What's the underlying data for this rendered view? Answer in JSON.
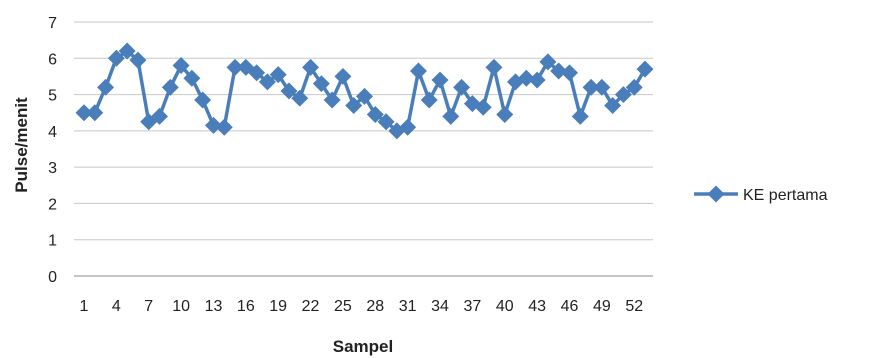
{
  "chart_data": {
    "type": "line",
    "xlabel": "Sampel",
    "ylabel": "Pulse/menit",
    "ylim": [
      0,
      7
    ],
    "yticks": [
      0,
      1,
      2,
      3,
      4,
      5,
      6,
      7
    ],
    "x_tick_labels": [
      "1",
      "4",
      "7",
      "10",
      "13",
      "16",
      "19",
      "22",
      "25",
      "28",
      "31",
      "34",
      "37",
      "40",
      "43",
      "46",
      "49",
      "52"
    ],
    "grid": "horizontal",
    "legend": "right",
    "color": "#4a7ebb",
    "x": [
      1,
      2,
      3,
      4,
      5,
      6,
      7,
      8,
      9,
      10,
      11,
      12,
      13,
      14,
      15,
      16,
      17,
      18,
      19,
      20,
      21,
      22,
      23,
      24,
      25,
      26,
      27,
      28,
      29,
      30,
      31,
      32,
      33,
      34,
      35,
      36,
      37,
      38,
      39,
      40,
      41,
      42,
      43,
      44,
      45,
      46,
      47,
      48,
      49,
      50,
      51,
      52,
      53
    ],
    "series": [
      {
        "name": "KE pertama",
        "values": [
          4.5,
          4.5,
          5.2,
          6.0,
          6.2,
          5.95,
          4.25,
          4.4,
          5.2,
          5.8,
          5.45,
          4.85,
          4.15,
          4.1,
          5.75,
          5.75,
          5.6,
          5.35,
          5.55,
          5.1,
          4.9,
          5.75,
          5.3,
          4.85,
          5.5,
          4.7,
          4.95,
          4.45,
          4.25,
          4.0,
          4.1,
          5.65,
          4.85,
          5.4,
          4.4,
          5.2,
          4.75,
          4.65,
          5.75,
          4.45,
          5.35,
          5.45,
          5.4,
          5.9,
          5.65,
          5.6,
          4.4,
          5.2,
          5.2,
          4.7,
          5.0,
          5.2,
          5.7
        ]
      }
    ]
  }
}
